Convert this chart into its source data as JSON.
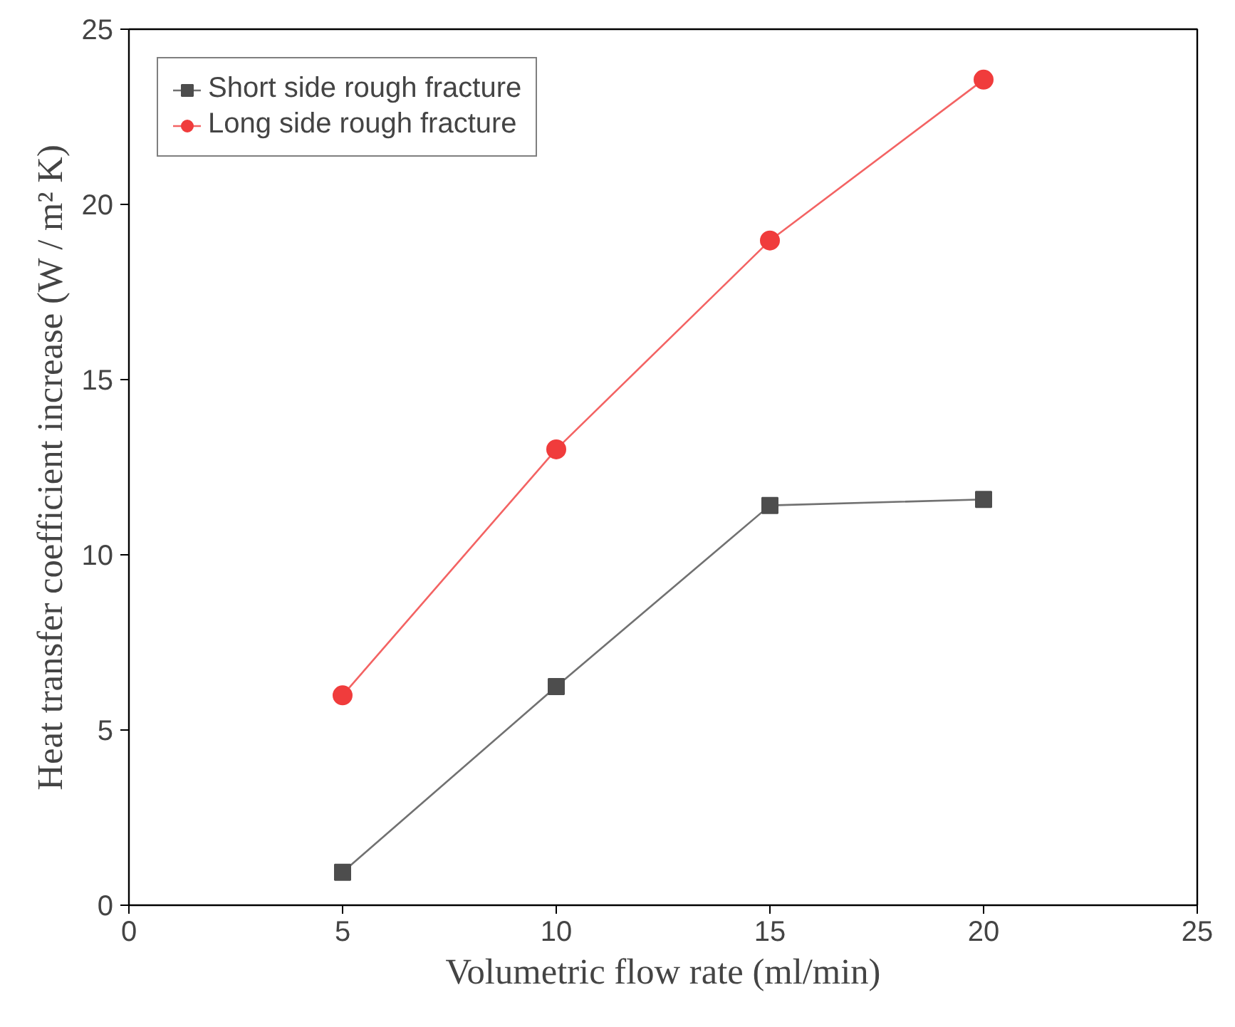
{
  "chart_data": {
    "type": "line",
    "xlabel": "Volumetric flow rate (ml/min)",
    "ylabel": "Heat transfer coefficient increase (W / m² K)",
    "x": [
      5,
      10,
      15,
      20
    ],
    "xlim": [
      0,
      25
    ],
    "xticks": [
      0,
      5,
      10,
      15,
      20,
      25
    ],
    "ylim": [
      0,
      25
    ],
    "yticks": [
      0,
      5,
      10,
      15,
      20,
      25
    ],
    "grid": false,
    "legend": "top left",
    "series": [
      {
        "name": "Short side rough fracture",
        "color": "#4d4d4d",
        "marker": "square",
        "values": [
          0.94,
          6.24,
          11.41,
          11.58
        ]
      },
      {
        "name": "Long side rough fracture",
        "color": "#f03c3c",
        "marker": "circle",
        "values": [
          5.99,
          13.01,
          18.97,
          23.56
        ]
      }
    ]
  }
}
